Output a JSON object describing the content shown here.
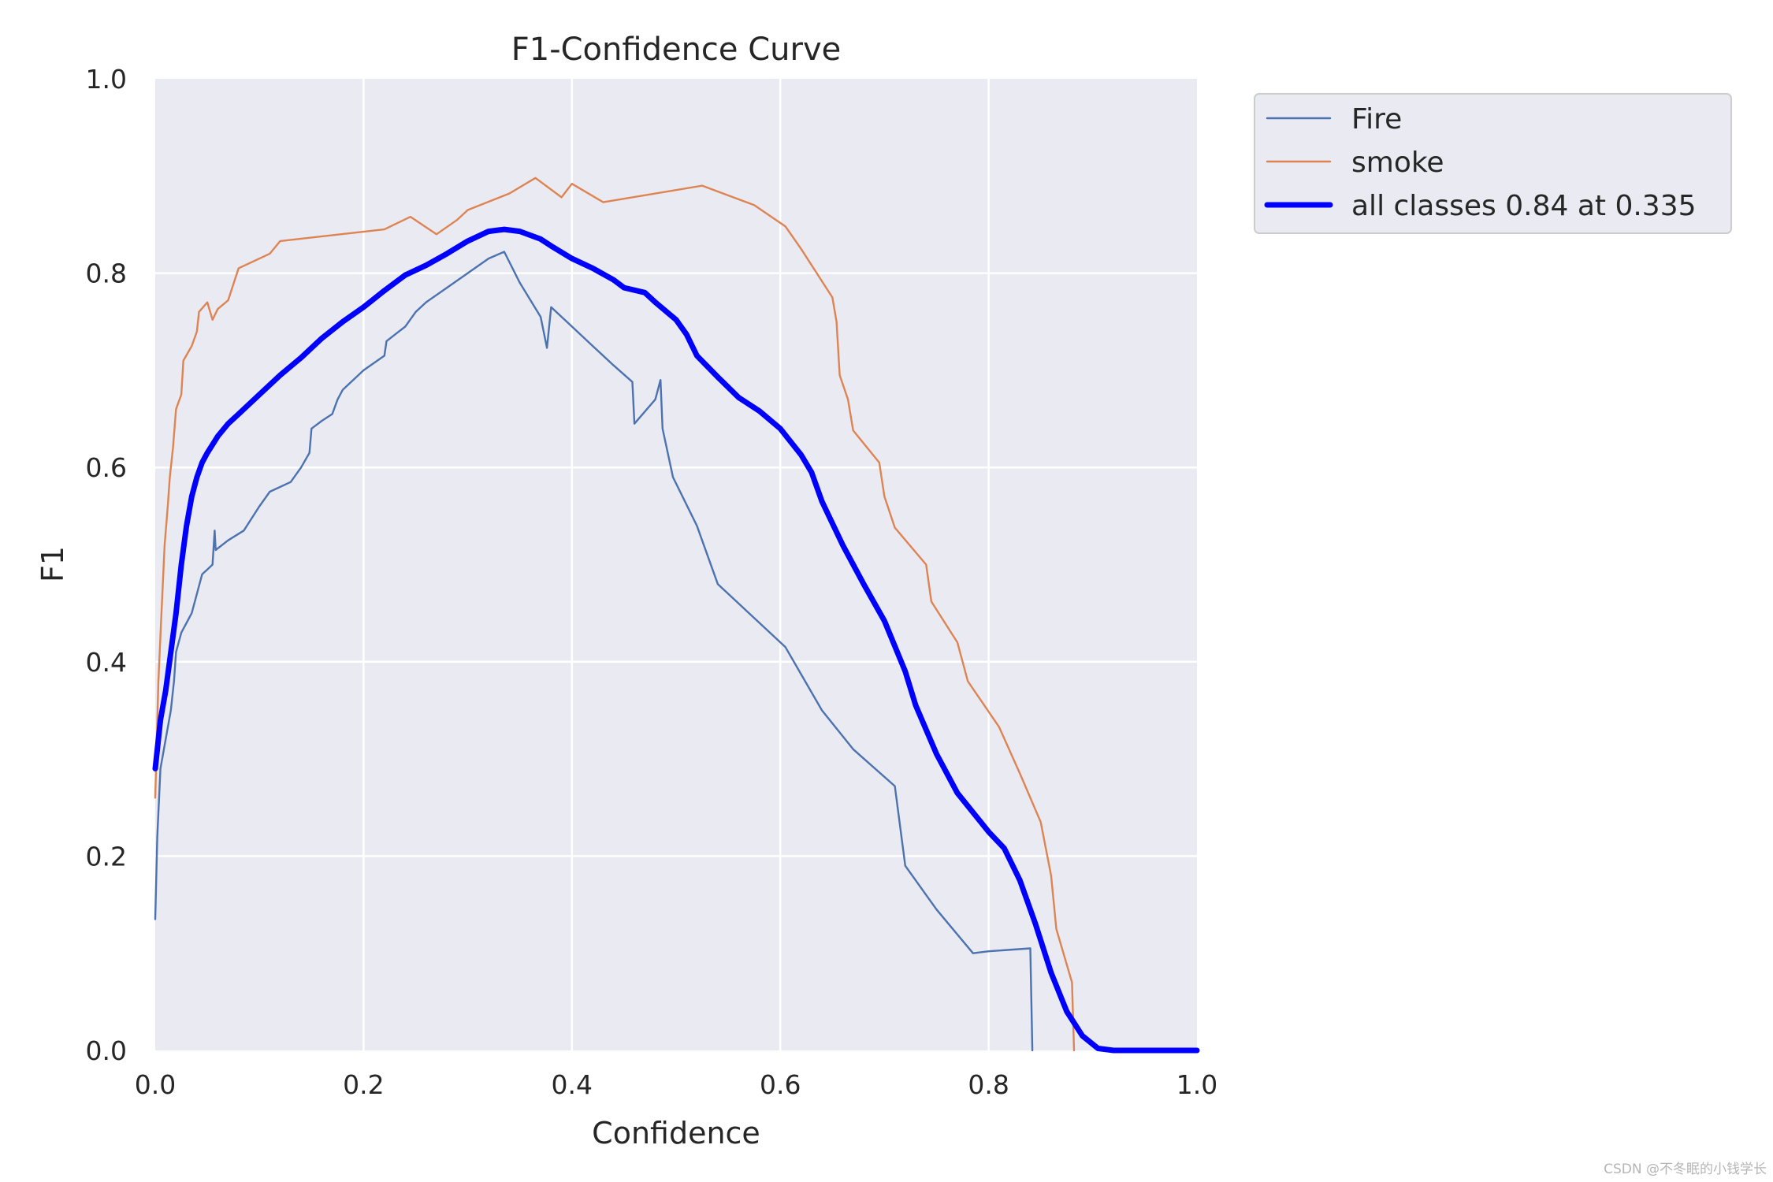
{
  "chart_data": {
    "type": "line",
    "title": "F1-Confidence Curve",
    "xlabel": "Confidence",
    "ylabel": "F1",
    "xlim": [
      0,
      1
    ],
    "ylim": [
      0,
      1
    ],
    "xticks": [
      "0.0",
      "0.2",
      "0.4",
      "0.6",
      "0.8",
      "1.0"
    ],
    "yticks": [
      "0.0",
      "0.2",
      "0.4",
      "0.6",
      "0.8",
      "1.0"
    ],
    "grid": true,
    "legend_position": "outside-top-right",
    "series": [
      {
        "name": "Fire",
        "color": "#4c72b0",
        "width": "thin",
        "points": [
          [
            0.0,
            0.135
          ],
          [
            0.002,
            0.22
          ],
          [
            0.005,
            0.29
          ],
          [
            0.01,
            0.32
          ],
          [
            0.015,
            0.35
          ],
          [
            0.018,
            0.38
          ],
          [
            0.02,
            0.41
          ],
          [
            0.025,
            0.43
          ],
          [
            0.03,
            0.44
          ],
          [
            0.035,
            0.45
          ],
          [
            0.04,
            0.47
          ],
          [
            0.045,
            0.49
          ],
          [
            0.05,
            0.495
          ],
          [
            0.055,
            0.5
          ],
          [
            0.057,
            0.535
          ],
          [
            0.058,
            0.515
          ],
          [
            0.07,
            0.525
          ],
          [
            0.085,
            0.535
          ],
          [
            0.1,
            0.56
          ],
          [
            0.11,
            0.575
          ],
          [
            0.13,
            0.585
          ],
          [
            0.14,
            0.6
          ],
          [
            0.148,
            0.615
          ],
          [
            0.15,
            0.64
          ],
          [
            0.16,
            0.648
          ],
          [
            0.17,
            0.655
          ],
          [
            0.175,
            0.67
          ],
          [
            0.18,
            0.68
          ],
          [
            0.19,
            0.69
          ],
          [
            0.2,
            0.7
          ],
          [
            0.22,
            0.715
          ],
          [
            0.222,
            0.73
          ],
          [
            0.24,
            0.745
          ],
          [
            0.25,
            0.76
          ],
          [
            0.26,
            0.77
          ],
          [
            0.28,
            0.785
          ],
          [
            0.3,
            0.8
          ],
          [
            0.32,
            0.815
          ],
          [
            0.335,
            0.822
          ],
          [
            0.35,
            0.79
          ],
          [
            0.37,
            0.755
          ],
          [
            0.376,
            0.723
          ],
          [
            0.38,
            0.765
          ],
          [
            0.4,
            0.745
          ],
          [
            0.42,
            0.725
          ],
          [
            0.44,
            0.705
          ],
          [
            0.458,
            0.688
          ],
          [
            0.46,
            0.645
          ],
          [
            0.48,
            0.67
          ],
          [
            0.485,
            0.69
          ],
          [
            0.487,
            0.64
          ],
          [
            0.497,
            0.59
          ],
          [
            0.52,
            0.54
          ],
          [
            0.54,
            0.48
          ],
          [
            0.57,
            0.45
          ],
          [
            0.605,
            0.415
          ],
          [
            0.64,
            0.35
          ],
          [
            0.67,
            0.31
          ],
          [
            0.71,
            0.272
          ],
          [
            0.72,
            0.19
          ],
          [
            0.75,
            0.145
          ],
          [
            0.785,
            0.1
          ],
          [
            0.8,
            0.102
          ],
          [
            0.84,
            0.105
          ],
          [
            0.842,
            0.0
          ]
        ]
      },
      {
        "name": "smoke",
        "color": "#dd8452",
        "width": "thin",
        "points": [
          [
            0.0,
            0.26
          ],
          [
            0.003,
            0.38
          ],
          [
            0.006,
            0.45
          ],
          [
            0.009,
            0.52
          ],
          [
            0.012,
            0.56
          ],
          [
            0.014,
            0.59
          ],
          [
            0.017,
            0.62
          ],
          [
            0.02,
            0.66
          ],
          [
            0.025,
            0.675
          ],
          [
            0.027,
            0.71
          ],
          [
            0.035,
            0.725
          ],
          [
            0.04,
            0.74
          ],
          [
            0.042,
            0.76
          ],
          [
            0.05,
            0.77
          ],
          [
            0.055,
            0.752
          ],
          [
            0.06,
            0.763
          ],
          [
            0.07,
            0.772
          ],
          [
            0.08,
            0.805
          ],
          [
            0.11,
            0.82
          ],
          [
            0.12,
            0.833
          ],
          [
            0.22,
            0.845
          ],
          [
            0.245,
            0.858
          ],
          [
            0.27,
            0.84
          ],
          [
            0.29,
            0.855
          ],
          [
            0.3,
            0.865
          ],
          [
            0.34,
            0.882
          ],
          [
            0.365,
            0.898
          ],
          [
            0.39,
            0.878
          ],
          [
            0.4,
            0.892
          ],
          [
            0.43,
            0.873
          ],
          [
            0.525,
            0.89
          ],
          [
            0.575,
            0.87
          ],
          [
            0.605,
            0.848
          ],
          [
            0.62,
            0.825
          ],
          [
            0.65,
            0.775
          ],
          [
            0.654,
            0.75
          ],
          [
            0.657,
            0.695
          ],
          [
            0.665,
            0.67
          ],
          [
            0.67,
            0.638
          ],
          [
            0.695,
            0.605
          ],
          [
            0.7,
            0.57
          ],
          [
            0.71,
            0.538
          ],
          [
            0.74,
            0.5
          ],
          [
            0.745,
            0.462
          ],
          [
            0.77,
            0.42
          ],
          [
            0.78,
            0.38
          ],
          [
            0.81,
            0.333
          ],
          [
            0.83,
            0.285
          ],
          [
            0.85,
            0.235
          ],
          [
            0.86,
            0.18
          ],
          [
            0.865,
            0.125
          ],
          [
            0.88,
            0.07
          ],
          [
            0.882,
            0.0
          ]
        ]
      },
      {
        "name": "all classes 0.84 at 0.335",
        "color": "#0000ff",
        "width": "thick",
        "points": [
          [
            0.0,
            0.29
          ],
          [
            0.005,
            0.34
          ],
          [
            0.01,
            0.37
          ],
          [
            0.015,
            0.41
          ],
          [
            0.02,
            0.45
          ],
          [
            0.025,
            0.5
          ],
          [
            0.03,
            0.54
          ],
          [
            0.035,
            0.57
          ],
          [
            0.04,
            0.59
          ],
          [
            0.045,
            0.605
          ],
          [
            0.05,
            0.615
          ],
          [
            0.06,
            0.632
          ],
          [
            0.07,
            0.645
          ],
          [
            0.08,
            0.655
          ],
          [
            0.1,
            0.675
          ],
          [
            0.12,
            0.695
          ],
          [
            0.14,
            0.713
          ],
          [
            0.16,
            0.733
          ],
          [
            0.18,
            0.75
          ],
          [
            0.2,
            0.765
          ],
          [
            0.22,
            0.782
          ],
          [
            0.24,
            0.798
          ],
          [
            0.26,
            0.808
          ],
          [
            0.28,
            0.82
          ],
          [
            0.3,
            0.833
          ],
          [
            0.32,
            0.843
          ],
          [
            0.335,
            0.845
          ],
          [
            0.35,
            0.843
          ],
          [
            0.37,
            0.835
          ],
          [
            0.38,
            0.828
          ],
          [
            0.4,
            0.815
          ],
          [
            0.42,
            0.805
          ],
          [
            0.44,
            0.793
          ],
          [
            0.45,
            0.785
          ],
          [
            0.47,
            0.78
          ],
          [
            0.48,
            0.77
          ],
          [
            0.5,
            0.752
          ],
          [
            0.51,
            0.737
          ],
          [
            0.52,
            0.715
          ],
          [
            0.54,
            0.693
          ],
          [
            0.56,
            0.672
          ],
          [
            0.58,
            0.658
          ],
          [
            0.6,
            0.64
          ],
          [
            0.62,
            0.613
          ],
          [
            0.63,
            0.595
          ],
          [
            0.64,
            0.565
          ],
          [
            0.66,
            0.52
          ],
          [
            0.68,
            0.48
          ],
          [
            0.7,
            0.442
          ],
          [
            0.72,
            0.39
          ],
          [
            0.73,
            0.355
          ],
          [
            0.75,
            0.305
          ],
          [
            0.77,
            0.265
          ],
          [
            0.8,
            0.225
          ],
          [
            0.815,
            0.208
          ],
          [
            0.83,
            0.175
          ],
          [
            0.845,
            0.13
          ],
          [
            0.86,
            0.08
          ],
          [
            0.875,
            0.04
          ],
          [
            0.89,
            0.015
          ],
          [
            0.905,
            0.002
          ],
          [
            0.92,
            0.0
          ],
          [
            1.0,
            0.0
          ]
        ]
      }
    ]
  },
  "watermark": "CSDN @不冬眠的小钱学长"
}
